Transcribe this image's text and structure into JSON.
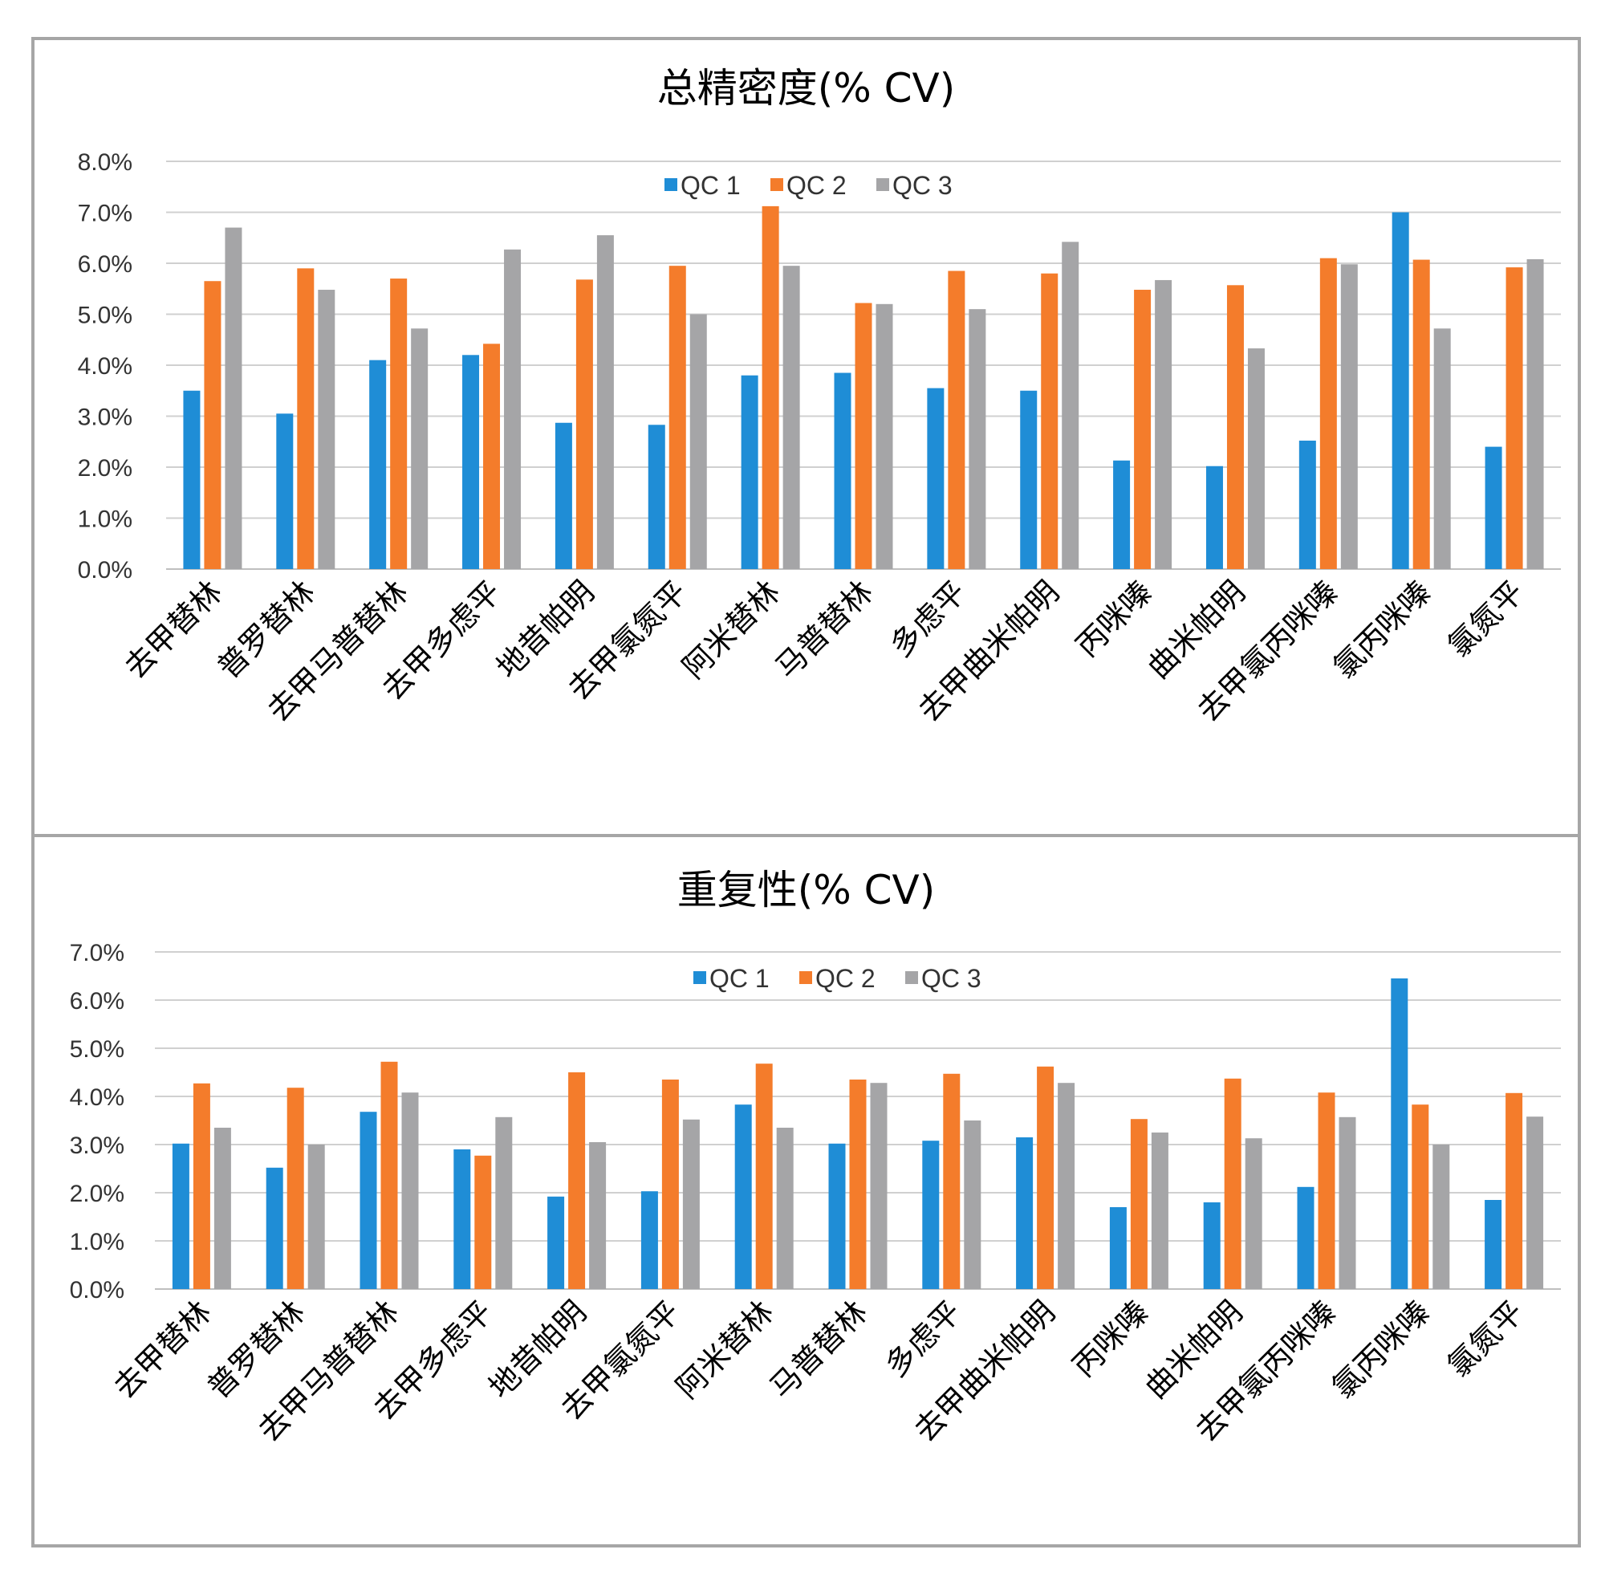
{
  "chart_data": [
    {
      "type": "bar",
      "title": "总精密度(% CV)",
      "categories": [
        "去甲替林",
        "普罗替林",
        "去甲马普替林",
        "去甲多虑平",
        "地昔帕明",
        "去甲氯氮平",
        "阿米替林",
        "马普替林",
        "多虑平",
        "去甲曲米帕明",
        "丙咪嗪",
        "曲米帕明",
        "去甲氯丙咪嗪",
        "氯丙咪嗪",
        "氯氮平"
      ],
      "series": [
        {
          "name": "QC 1",
          "color": "#1f8dd6",
          "values": [
            3.5,
            3.05,
            4.1,
            4.2,
            2.87,
            2.83,
            3.8,
            3.85,
            3.55,
            3.5,
            2.13,
            2.02,
            2.52,
            7.0,
            2.4
          ]
        },
        {
          "name": "QC 2",
          "color": "#f47c2b",
          "values": [
            5.65,
            5.9,
            5.7,
            4.42,
            5.68,
            5.95,
            7.12,
            5.22,
            5.85,
            5.8,
            5.48,
            5.57,
            6.1,
            6.07,
            5.92
          ]
        },
        {
          "name": "QC 3",
          "color": "#a5a5a7",
          "values": [
            6.7,
            5.48,
            4.72,
            6.27,
            6.55,
            5.0,
            5.95,
            5.2,
            5.1,
            6.42,
            5.67,
            4.33,
            5.98,
            4.72,
            6.08
          ]
        }
      ],
      "y_ticks": [
        "0.0%",
        "1.0%",
        "2.0%",
        "3.0%",
        "4.0%",
        "5.0%",
        "6.0%",
        "7.0%",
        "8.0%"
      ],
      "ylim": [
        0,
        8
      ],
      "legend_position": "top-center",
      "grid": true
    },
    {
      "type": "bar",
      "title": "重复性(% CV)",
      "categories": [
        "去甲替林",
        "普罗替林",
        "去甲马普替林",
        "去甲多虑平",
        "地昔帕明",
        "去甲氯氮平",
        "阿米替林",
        "马普替林",
        "多虑平",
        "去甲曲米帕明",
        "丙咪嗪",
        "曲米帕明",
        "去甲氯丙咪嗪",
        "氯丙咪嗪",
        "氯氮平"
      ],
      "series": [
        {
          "name": "QC 1",
          "color": "#1f8dd6",
          "values": [
            3.02,
            2.52,
            3.68,
            2.9,
            1.92,
            2.03,
            3.83,
            3.02,
            3.08,
            3.15,
            1.7,
            1.8,
            2.12,
            6.45,
            1.85
          ]
        },
        {
          "name": "QC 2",
          "color": "#f47c2b",
          "values": [
            4.27,
            4.18,
            4.72,
            2.77,
            4.5,
            4.35,
            4.68,
            4.35,
            4.47,
            4.62,
            3.53,
            4.37,
            4.08,
            3.83,
            4.07
          ]
        },
        {
          "name": "QC 3",
          "color": "#a5a5a7",
          "values": [
            3.35,
            3.0,
            4.08,
            3.57,
            3.05,
            3.52,
            3.35,
            4.28,
            3.5,
            4.28,
            3.25,
            3.13,
            3.57,
            3.0,
            3.58
          ]
        }
      ],
      "y_ticks": [
        "0.0%",
        "1.0%",
        "2.0%",
        "3.0%",
        "4.0%",
        "5.0%",
        "6.0%",
        "7.0%"
      ],
      "ylim": [
        0,
        7
      ],
      "legend_position": "top-center",
      "grid": true
    }
  ]
}
